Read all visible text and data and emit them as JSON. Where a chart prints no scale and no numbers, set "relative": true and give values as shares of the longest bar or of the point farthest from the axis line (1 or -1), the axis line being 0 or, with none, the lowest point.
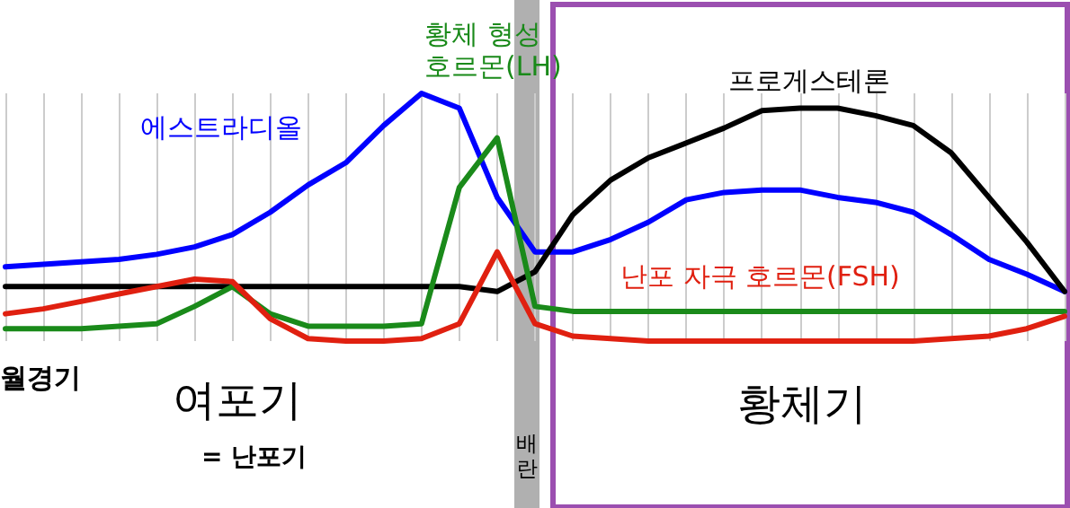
{
  "chart_data": {
    "type": "line",
    "relative": true,
    "grid": "x",
    "marker": "none",
    "line_style": "solid",
    "categories": [
      null,
      null,
      null,
      null,
      null,
      null,
      null,
      null,
      null,
      null,
      null,
      null,
      null,
      null,
      null,
      null,
      null,
      null,
      null,
      null,
      null,
      null,
      null,
      null,
      null,
      null,
      null,
      null,
      null
    ],
    "series": [
      {
        "name": "에스트라디올",
        "color": "#0000ff",
        "values": [
          0.3,
          0.31,
          0.32,
          0.33,
          0.35,
          0.38,
          0.43,
          0.52,
          0.63,
          0.72,
          0.87,
          1,
          0.94,
          0.58,
          0.36,
          0.36,
          0.41,
          0.48,
          0.57,
          0.6,
          0.61,
          0.61,
          0.58,
          0.56,
          0.52,
          0.43,
          0.33,
          0.27,
          0.2
        ]
      },
      {
        "name": "프로게스테론",
        "color": "#000000",
        "values": [
          0.22,
          0.22,
          0.22,
          0.22,
          0.22,
          0.22,
          0.22,
          0.22,
          0.22,
          0.22,
          0.22,
          0.22,
          0.22,
          0.2,
          0.28,
          0.51,
          0.65,
          0.74,
          0.8,
          0.86,
          0.93,
          0.94,
          0.94,
          0.91,
          0.87,
          0.76,
          0.58,
          0.4,
          0.2
        ]
      },
      {
        "name": "황체 형성\n호르몬(LH)",
        "color": "#1a8a1a",
        "values": [
          0.05,
          0.05,
          0.05,
          0.06,
          0.07,
          0.14,
          0.22,
          0.11,
          0.06,
          0.06,
          0.06,
          0.07,
          0.62,
          0.82,
          0.14,
          0.12,
          0.12,
          0.12,
          0.12,
          0.12,
          0.12,
          0.12,
          0.12,
          0.12,
          0.12,
          0.12,
          0.12,
          0.12,
          0.12
        ]
      },
      {
        "name": "난포 자극 호르몬(FSH)",
        "color": "#e02010",
        "values": [
          0.11,
          0.13,
          0.16,
          0.19,
          0.22,
          0.25,
          0.24,
          0.09,
          0.01,
          0,
          0,
          0.01,
          0.07,
          0.36,
          0.07,
          0.02,
          0.01,
          0,
          0,
          0,
          0,
          0,
          0,
          0,
          0,
          0.01,
          0.02,
          0.05,
          0.1
        ]
      }
    ],
    "annotations": [
      "월경기",
      "여포기",
      "= 난포기",
      "배란",
      "황체기"
    ]
  }
}
